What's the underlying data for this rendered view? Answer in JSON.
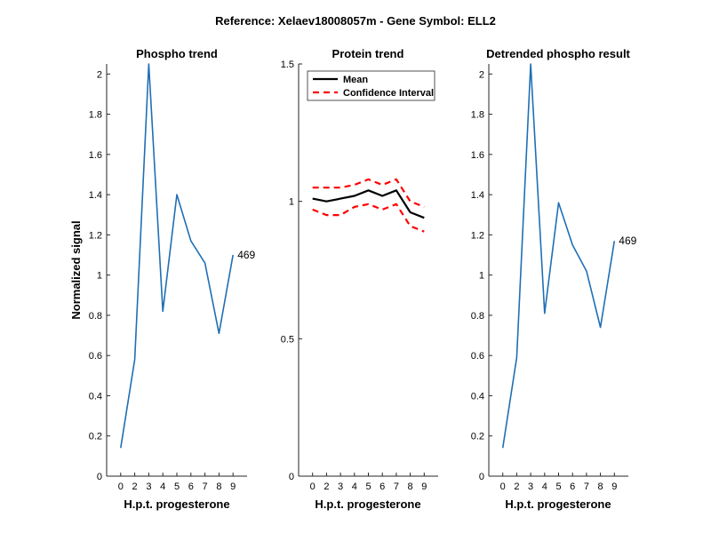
{
  "figure_title": "Reference:  Xelaev18008057m - Gene Symbol:  ELL2",
  "chart_data": [
    {
      "type": "line",
      "title": "Phospho trend",
      "xlabel": "H.p.t. progesterone",
      "ylabel": "Normalized signal",
      "categories": [
        "0",
        "2",
        "3",
        "4",
        "5",
        "6",
        "7",
        "8",
        "9"
      ],
      "ylim": [
        0,
        2.05
      ],
      "yticks": [
        "0",
        "0.2",
        "0.4",
        "0.6",
        "0.8",
        "1",
        "1.2",
        "1.4",
        "1.6",
        "1.8",
        "2"
      ],
      "series": [
        {
          "color": "#1f6fb4",
          "values": [
            0.14,
            0.58,
            2.05,
            0.82,
            1.4,
            1.17,
            1.06,
            0.71,
            1.1
          ]
        }
      ],
      "annotation": "469"
    },
    {
      "type": "line",
      "title": "Protein trend",
      "xlabel": "H.p.t. progesterone",
      "ylabel": "",
      "categories": [
        "0",
        "2",
        "3",
        "4",
        "5",
        "6",
        "7",
        "8",
        "9"
      ],
      "ylim": [
        0,
        1.5
      ],
      "yticks": [
        "0",
        "0.5",
        "1",
        "1.5"
      ],
      "series": [
        {
          "name": "Mean",
          "color": "#000000",
          "values": [
            1.01,
            1.0,
            1.01,
            1.02,
            1.04,
            1.02,
            1.04,
            0.96,
            0.94
          ]
        },
        {
          "name": "Confidence Interval",
          "color": "#ff0000",
          "dashed": true,
          "values": [
            1.05,
            1.05,
            1.05,
            1.06,
            1.08,
            1.06,
            1.08,
            1.0,
            0.98
          ]
        },
        {
          "color": "#ff0000",
          "dashed": true,
          "values": [
            0.97,
            0.95,
            0.95,
            0.98,
            0.99,
            0.97,
            0.99,
            0.91,
            0.89
          ]
        }
      ],
      "legend": {
        "placement": "top-left",
        "entries": [
          "Mean",
          "Confidence Interval"
        ]
      }
    },
    {
      "type": "line",
      "title": "Detrended phospho result",
      "xlabel": "H.p.t. progesterone",
      "ylabel": "",
      "categories": [
        "0",
        "2",
        "3",
        "4",
        "5",
        "6",
        "7",
        "8",
        "9"
      ],
      "ylim": [
        0,
        2.05
      ],
      "yticks": [
        "0",
        "0.2",
        "0.4",
        "0.6",
        "0.8",
        "1",
        "1.2",
        "1.4",
        "1.6",
        "1.8",
        "2"
      ],
      "series": [
        {
          "color": "#1f6fb4",
          "values": [
            0.14,
            0.59,
            2.05,
            0.81,
            1.36,
            1.15,
            1.02,
            0.74,
            1.17
          ]
        }
      ],
      "annotation": "469"
    }
  ]
}
